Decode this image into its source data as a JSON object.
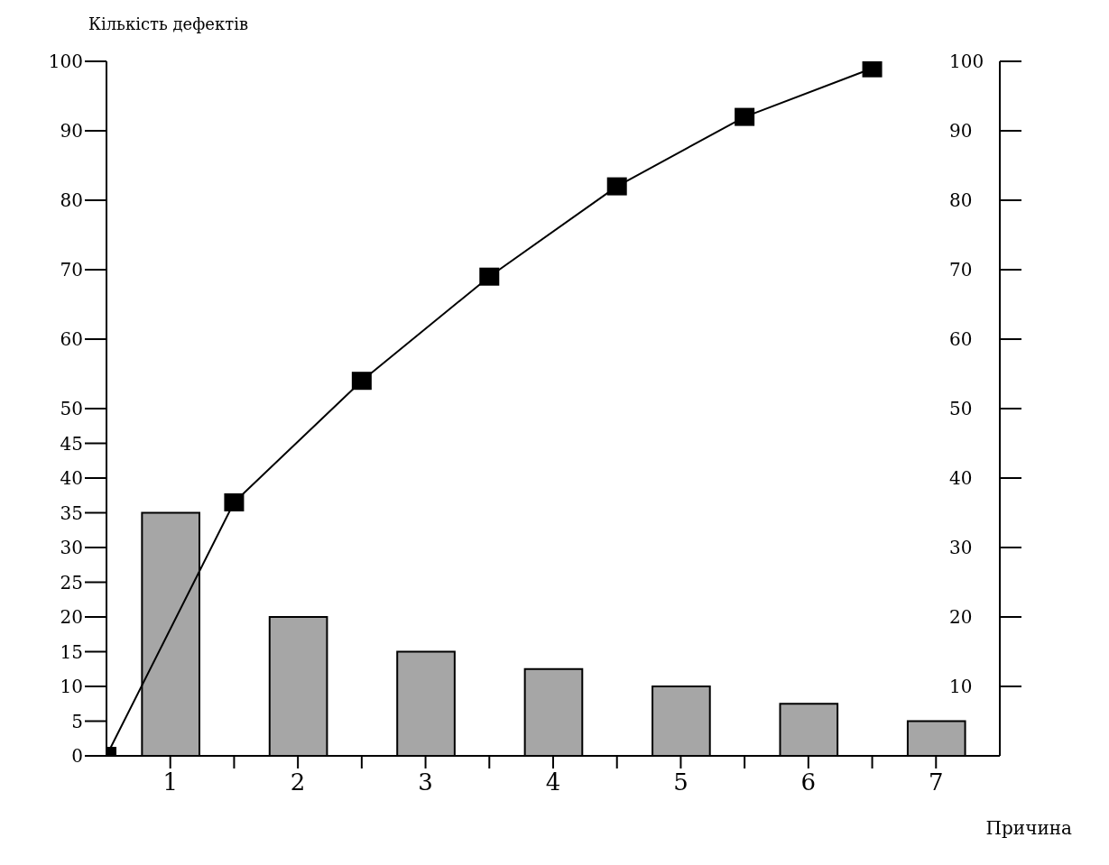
{
  "chart_data": {
    "type": "bar",
    "xlabel": "Причина",
    "ylabel": "Кількість дефектів",
    "x": [
      1,
      2,
      3,
      4,
      5,
      6,
      7
    ],
    "xlim": [
      0.5,
      7.5
    ],
    "xticks": [
      1,
      {
        "value": 1.5,
        "label": null
      },
      2,
      {
        "value": 2.5,
        "label": null
      },
      3,
      {
        "value": 3.5,
        "label": null
      },
      4,
      {
        "value": 4.5,
        "label": null
      },
      5,
      {
        "value": 5.5,
        "label": null
      },
      6,
      {
        "value": 6.5,
        "label": null
      },
      7
    ],
    "ylim": [
      0,
      100
    ],
    "yticks": [
      0,
      5,
      10,
      15,
      20,
      25,
      30,
      35,
      40,
      45,
      50,
      60,
      70,
      80,
      90,
      100
    ],
    "y2lim": [
      0,
      100
    ],
    "y2ticks": [
      10,
      20,
      30,
      40,
      50,
      60,
      70,
      80,
      90,
      100
    ],
    "series": [
      {
        "color": "#a6a6a6",
        "values": [
          35,
          20,
          15,
          12.5,
          10,
          7.5,
          5
        ]
      },
      {
        "type": "line",
        "color": "#000000",
        "x": [
          0.5,
          1.5,
          2.5,
          3.5,
          4.5,
          5.5,
          6.5
        ],
        "values": [
          0,
          36.5,
          54,
          69,
          82,
          92,
          99
        ]
      }
    ],
    "grid": false,
    "legend": false,
    "marker": "square",
    "line_style": "solid"
  }
}
